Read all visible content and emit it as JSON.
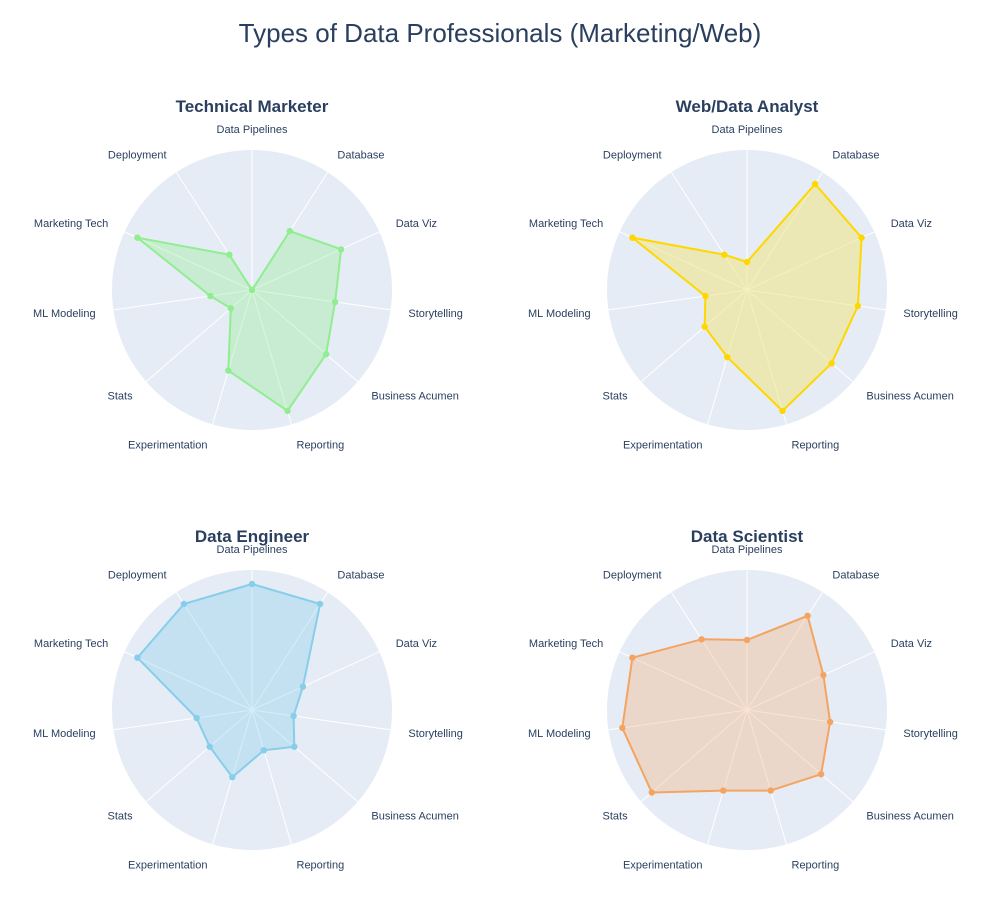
{
  "title": "Types of Data Professionals (Marketing/Web)",
  "chart_data": [
    {
      "type": "radar",
      "title": "Technical Marketer",
      "categories": [
        "Data Pipelines",
        "Database",
        "Data Viz",
        "Storytelling",
        "Business Acumen",
        "Reporting",
        "Experimentation",
        "Stats",
        "ML Modeling",
        "Marketing Tech",
        "Deployment"
      ],
      "values": [
        0,
        5,
        7,
        6,
        7,
        9,
        6,
        2,
        3,
        9,
        3
      ],
      "range": [
        0,
        10
      ],
      "color": "#90ee90",
      "fill": "rgba(144,238,144,0.35)"
    },
    {
      "type": "radar",
      "title": "Web/Data Analyst",
      "categories": [
        "Data Pipelines",
        "Database",
        "Data Viz",
        "Storytelling",
        "Business Acumen",
        "Reporting",
        "Experimentation",
        "Stats",
        "ML Modeling",
        "Marketing Tech",
        "Deployment"
      ],
      "values": [
        2,
        9,
        9,
        8,
        8,
        9,
        5,
        4,
        3,
        9,
        3
      ],
      "range": [
        0,
        10
      ],
      "color": "#ffd700",
      "fill": "rgba(240,230,140,0.6)"
    },
    {
      "type": "radar",
      "title": "Data Engineer",
      "categories": [
        "Data Pipelines",
        "Database",
        "Data Viz",
        "Storytelling",
        "Business Acumen",
        "Reporting",
        "Experimentation",
        "Stats",
        "ML Modeling",
        "Marketing Tech",
        "Deployment"
      ],
      "values": [
        9,
        9,
        4,
        3,
        4,
        3,
        5,
        4,
        4,
        9,
        9
      ],
      "range": [
        0,
        10
      ],
      "color": "#87ceeb",
      "fill": "rgba(135,206,235,0.35)"
    },
    {
      "type": "radar",
      "title": "Data Scientist",
      "categories": [
        "Data Pipelines",
        "Database",
        "Data Viz",
        "Storytelling",
        "Business Acumen",
        "Reporting",
        "Experimentation",
        "Stats",
        "ML Modeling",
        "Marketing Tech",
        "Deployment"
      ],
      "values": [
        5,
        8,
        6,
        6,
        7,
        6,
        6,
        9,
        9,
        9,
        6
      ],
      "range": [
        0,
        10
      ],
      "color": "#f4a460",
      "fill": "rgba(244,164,96,0.3)"
    }
  ]
}
